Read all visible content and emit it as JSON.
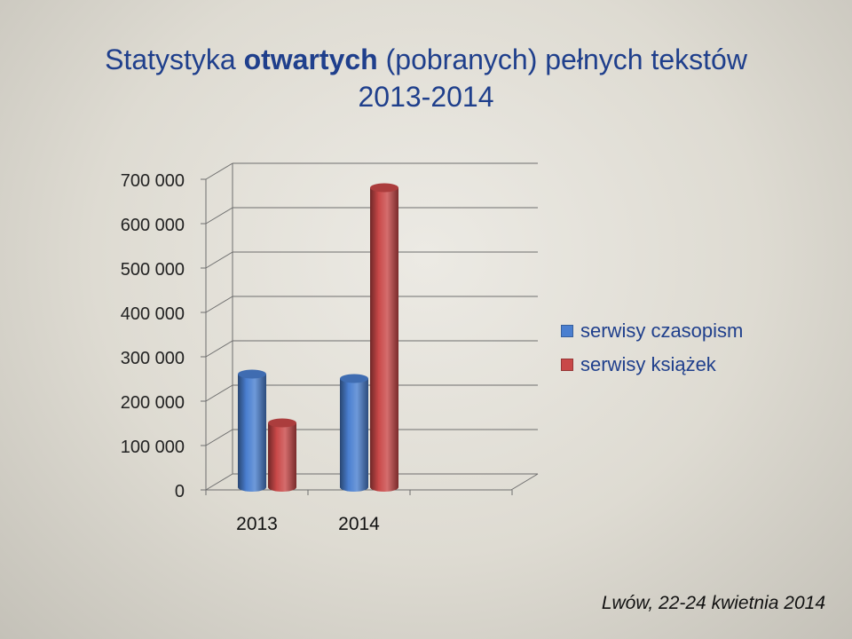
{
  "title": {
    "line1_pre": "Statystyka ",
    "line1_bold": "otwartych",
    "line1_post": " (pobranych) pełnych tekstów",
    "line2": "2013-2014"
  },
  "footer": "Lwów, 22-24 kwietnia 2014",
  "colors": {
    "title": "#1f3f8c",
    "series1": "#4a7fd0",
    "series2": "#c94848"
  },
  "chart_data": {
    "type": "bar",
    "categories": [
      "2013",
      "2014"
    ],
    "series": [
      {
        "name": "serwisy czasopism",
        "values": [
          255000,
          245000
        ]
      },
      {
        "name": "serwisy książek",
        "values": [
          145000,
          675000
        ]
      }
    ],
    "ylim": [
      0,
      700000
    ],
    "yticks": [
      "0",
      "100 000",
      "200 000",
      "300 000",
      "400 000",
      "500 000",
      "600 000",
      "700 000"
    ],
    "legend_position": "right",
    "grid": true
  }
}
